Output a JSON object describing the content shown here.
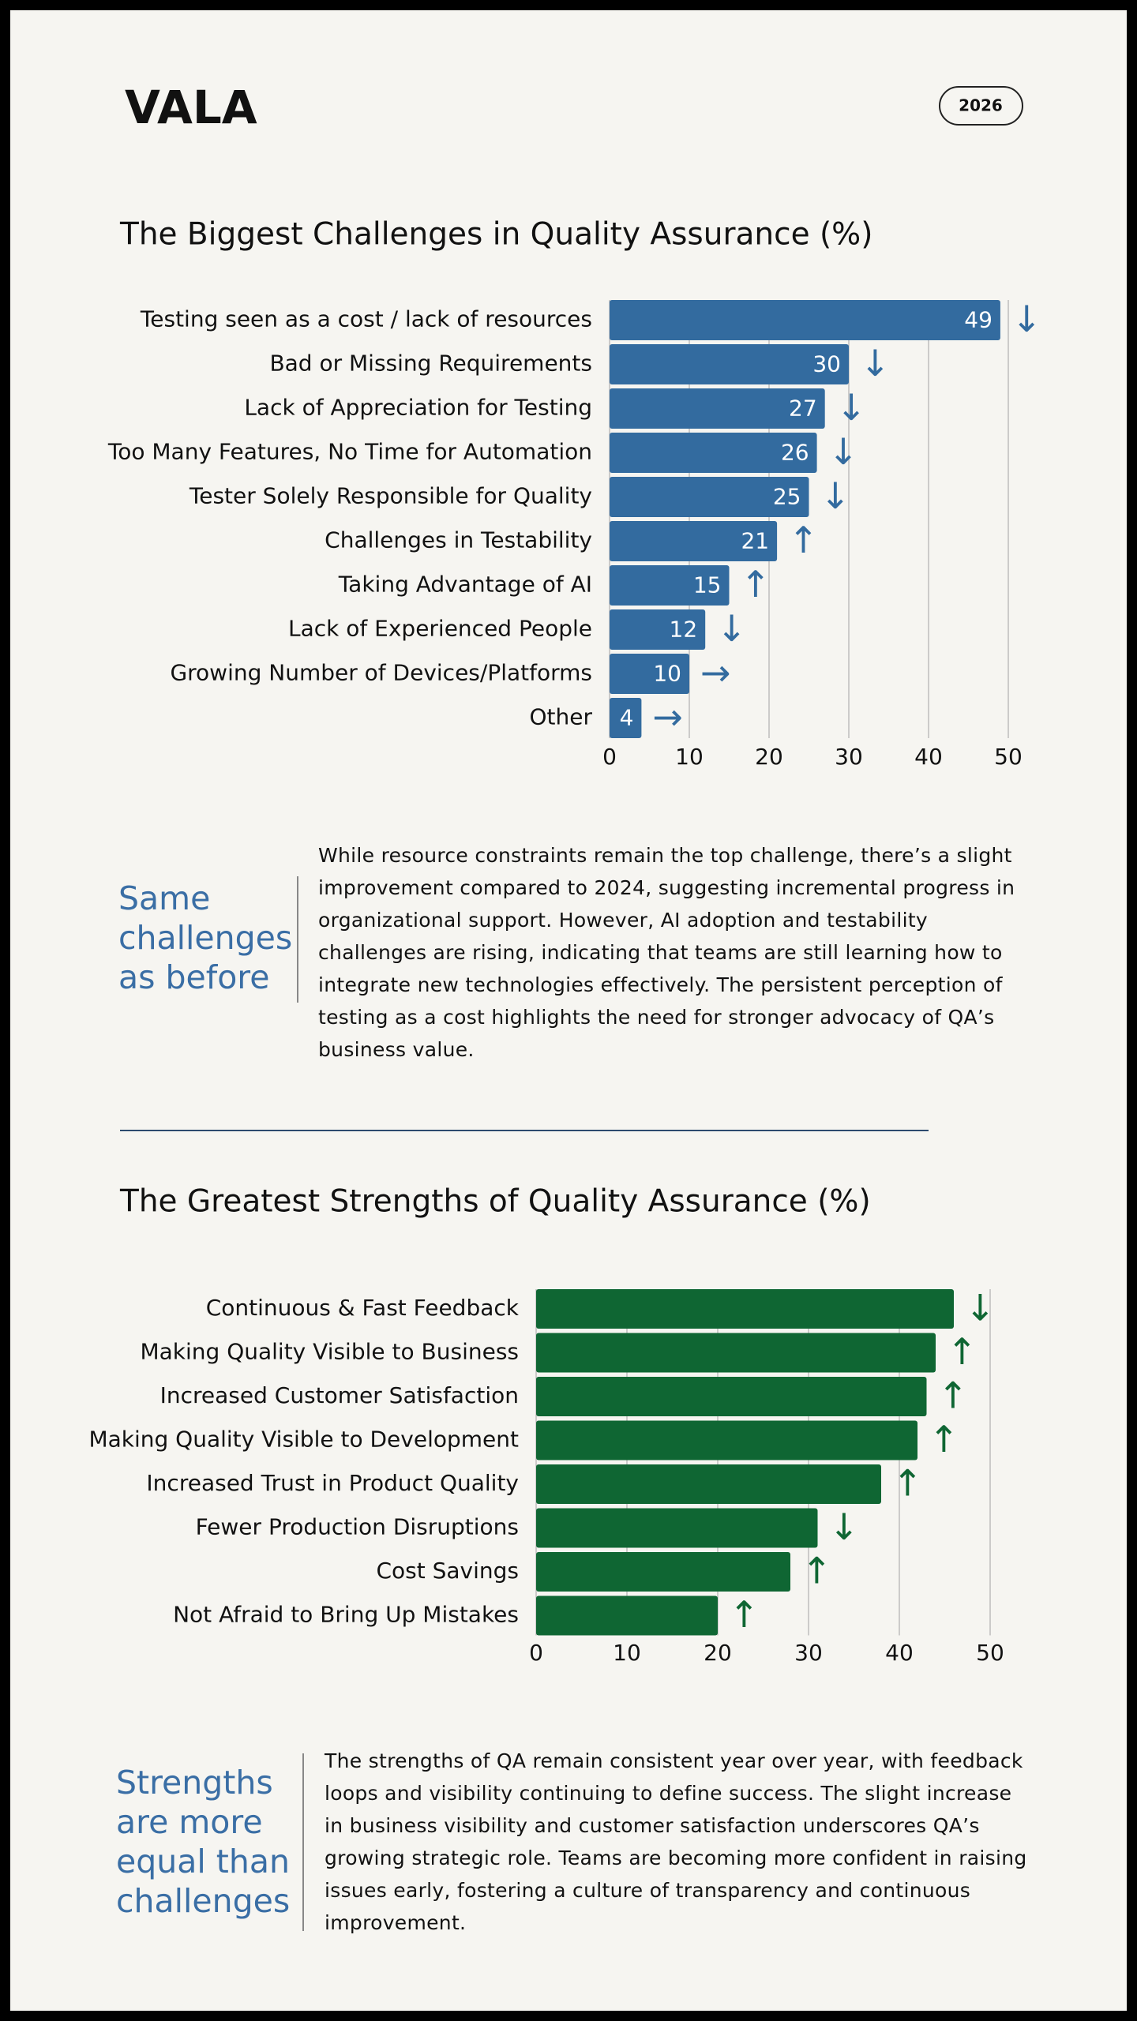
{
  "header": {
    "logo": "VALA",
    "badge": "2026"
  },
  "chart_data": [
    {
      "type": "bar",
      "orientation": "horizontal",
      "title": "The Biggest Challenges in Quality Assurance (%)",
      "categories": [
        "Testing seen as a cost / lack of resources",
        "Bad or Missing Requirements",
        "Lack of Appreciation for Testing",
        "Too Many Features, No Time for Automation",
        "Tester Solely Responsible for Quality",
        "Challenges in Testability",
        "Taking Advantage of AI",
        "Lack of Experienced People",
        "Growing Number of Devices/Platforms",
        "Other"
      ],
      "values": [
        49,
        30,
        27,
        26,
        25,
        21,
        15,
        12,
        10,
        4
      ],
      "trends": [
        "↓",
        "↓",
        "↓",
        "↓",
        "↓",
        "↑",
        "↑",
        "↓",
        "→",
        "→"
      ],
      "show_values": true,
      "color": "#336b9f",
      "xlim": [
        0,
        50
      ],
      "xticks": [
        0,
        10,
        20,
        30,
        40,
        50
      ],
      "grid": true
    },
    {
      "type": "bar",
      "orientation": "horizontal",
      "title": "The Greatest Strengths of Quality Assurance (%)",
      "categories": [
        "Continuous & Fast Feedback",
        "Making Quality Visible to Business",
        "Increased Customer Satisfaction",
        "Making Quality Visible to Development",
        "Increased Trust in Product Quality",
        "Fewer Production Disruptions",
        "Cost Savings",
        "Not Afraid to Bring Up Mistakes"
      ],
      "values": [
        46,
        44,
        43,
        42,
        38,
        31,
        28,
        20
      ],
      "trends": [
        "↓",
        "↑",
        "↑",
        "↑",
        "↑",
        "↓",
        "↑",
        "↑"
      ],
      "show_values": false,
      "color": "#0f6633",
      "xlim": [
        0,
        50
      ],
      "xticks": [
        0,
        10,
        20,
        30,
        40,
        50
      ],
      "grid": true
    }
  ],
  "notes": [
    {
      "heading": "Same challenges as before",
      "text": "While resource constraints remain the top challenge, there’s a slight improvement compared to 2024, suggesting incremental progress in organizational support. However, AI adoption and testability challenges are rising, indicating that teams are still learning how to integrate new technologies effectively. The persistent perception of testing as a cost highlights the need for stronger advocacy of QA’s business value."
    },
    {
      "heading": "Strengths are more equal than challenges",
      "text": "The strengths of QA remain consistent year over year, with feedback loops and visibility continuing to define success. The slight increase in business visibility and customer satisfaction underscores QA’s growing strategic role. Teams are becoming more confident in raising issues early, fostering a culture of transparency and continuous improvement."
    }
  ]
}
